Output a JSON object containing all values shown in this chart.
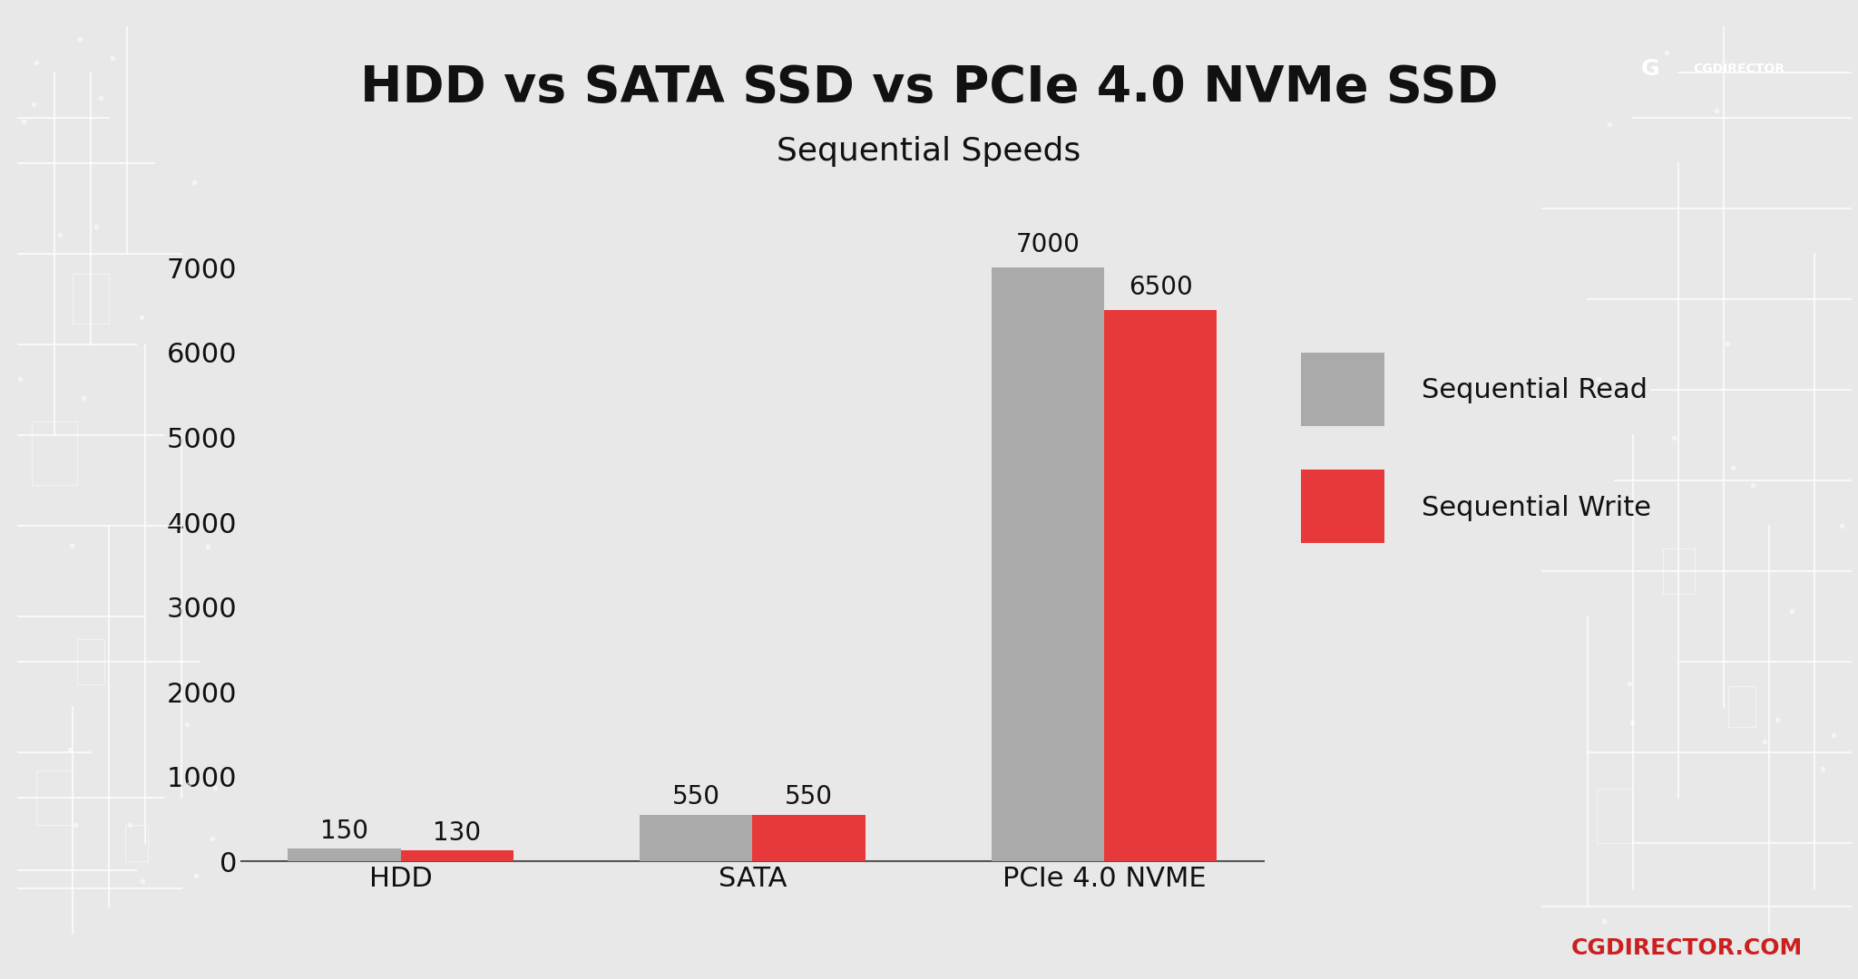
{
  "title": "HDD vs SATA SSD vs PCIe 4.0 NVMe SSD",
  "subtitle": "Sequential Speeds",
  "categories": [
    "HDD",
    "SATA",
    "PCIe 4.0 NVME"
  ],
  "read_values": [
    150,
    550,
    7000
  ],
  "write_values": [
    130,
    550,
    6500
  ],
  "read_color": "#aaaaaa",
  "write_color": "#e8393a",
  "background_color": "#e8e8e8",
  "ylim": [
    0,
    7500
  ],
  "yticks": [
    0,
    1000,
    2000,
    3000,
    4000,
    5000,
    6000,
    7000
  ],
  "bar_width": 0.32,
  "title_fontsize": 40,
  "subtitle_fontsize": 26,
  "tick_fontsize": 22,
  "legend_fontsize": 22,
  "value_fontsize": 20,
  "legend_read": "Sequential Read",
  "legend_write": "Sequential Write",
  "footer_text": "CGDIRECTOR.COM",
  "footer_color": "#cc2020",
  "text_color": "#111111",
  "axis_color": "#555555",
  "logo_bg_color": "#cc2020"
}
